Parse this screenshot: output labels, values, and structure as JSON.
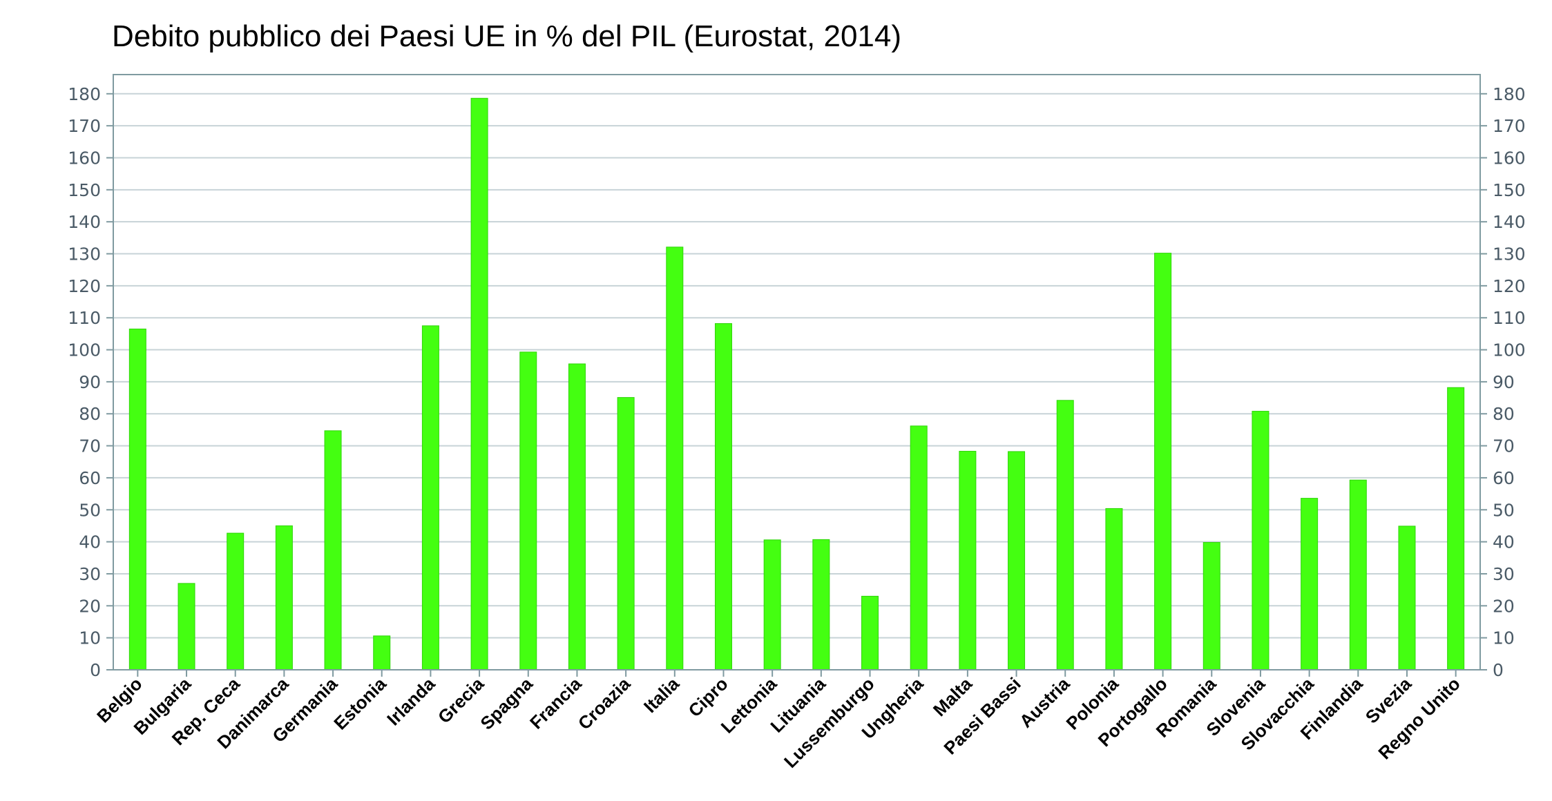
{
  "chart_data": {
    "type": "bar",
    "title": "Debito pubblico dei Paesi UE in % del PIL (Eurostat, 2014)",
    "xlabel": "",
    "ylabel": "",
    "ylim": [
      0,
      186
    ],
    "yticks": [
      0,
      10,
      20,
      30,
      40,
      50,
      60,
      70,
      80,
      90,
      100,
      110,
      120,
      130,
      140,
      150,
      160,
      170,
      180
    ],
    "grid": true,
    "categories": [
      "Belgio",
      "Bulgaria",
      "Rep. Ceca",
      "Danimarca",
      "Germania",
      "Estonia",
      "Irlanda",
      "Grecia",
      "Spagna",
      "Francia",
      "Croazia",
      "Italia",
      "Cipro",
      "Lettonia",
      "Lituania",
      "Lussemburgo",
      "Ungheria",
      "Malta",
      "Paesi Bassi",
      "Austria",
      "Polonia",
      "Portogallo",
      "Romania",
      "Slovenia",
      "Slovacchia",
      "Finlandia",
      "Svezia",
      "Regno Unito"
    ],
    "values": [
      106.5,
      27,
      42.7,
      45,
      74.7,
      10.6,
      107.5,
      178.6,
      99.3,
      95.6,
      85.1,
      132.1,
      108.2,
      40.6,
      40.7,
      23,
      76.2,
      68.3,
      68.2,
      84.2,
      50.4,
      130.2,
      39.8,
      80.8,
      53.6,
      59.3,
      44.9,
      88.2
    ],
    "colors": {
      "bar": "#44ff11",
      "bar_edge": "#2fd40a",
      "grid": "#c7d3d7",
      "frame": "#7f9aa0",
      "tick_text": "#4a5a66"
    }
  }
}
